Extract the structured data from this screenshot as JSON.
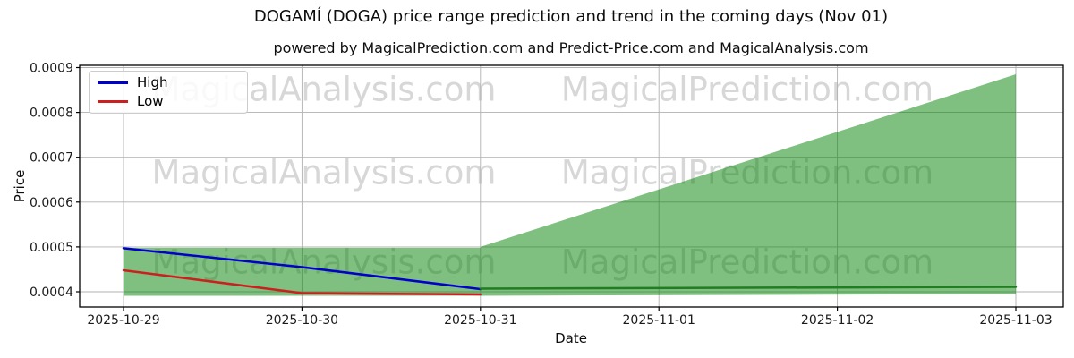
{
  "title": "DOGAMÍ (DOGA) price range prediction and trend in the coming days (Nov 01)",
  "subtitle": "powered by MagicalPrediction.com and Predict-Price.com and MagicalAnalysis.com",
  "watermark": {
    "left_text": "MagicalAnalysis.com",
    "right_text": "MagicalPrediction.com"
  },
  "legend": [
    {
      "label": "High",
      "color": "#0000cc"
    },
    {
      "label": "Low",
      "color": "#cc2020"
    }
  ],
  "colors": {
    "high_line": "#0000cc",
    "low_line": "#cc2020",
    "trend_line": "#217d21",
    "range_fill": "#008000",
    "range_fill_alpha": 0.5,
    "gridline": "#b0b0b0",
    "spine": "#000000",
    "tick_text": "#1a1a1a",
    "watermark": "#d7d7d7"
  },
  "chart_data": {
    "type": "line",
    "title": "DOGAMÍ (DOGA) price range prediction and trend in the coming days (Nov 01)",
    "xlabel": "Date",
    "ylabel": "Price",
    "categories": [
      "2025-10-29",
      "2025-10-30",
      "2025-10-31",
      "2025-11-01",
      "2025-11-02",
      "2025-11-03"
    ],
    "ytick_labels": [
      "0.0004",
      "0.0005",
      "0.0006",
      "0.0007",
      "0.0008",
      "0.0009"
    ],
    "ytick_values": [
      0.0004,
      0.0005,
      0.0006,
      0.0007,
      0.0008,
      0.0009
    ],
    "ylim": [
      0.000366,
      0.000905
    ],
    "grid": true,
    "legend_position": "upper left",
    "series": [
      {
        "name": "High",
        "color": "#0000cc",
        "x": [
          0,
          1,
          2
        ],
        "values": [
          0.000497,
          0.000455,
          0.000406
        ]
      },
      {
        "name": "Low",
        "color": "#cc2020",
        "x": [
          0,
          1,
          2
        ],
        "values": [
          0.000448,
          0.000397,
          0.000394
        ]
      },
      {
        "name": "Trend",
        "color": "#217d21",
        "x": [
          2,
          5
        ],
        "values": [
          0.000407,
          0.000411
        ]
      }
    ],
    "areas": [
      {
        "name": "historical-range-band",
        "x": [
          0,
          2
        ],
        "top": [
          0.000498,
          0.000498
        ],
        "bottom": [
          0.000391,
          0.000391
        ]
      },
      {
        "name": "forecast-range-fan",
        "x": [
          2,
          5
        ],
        "top": [
          0.0005,
          0.000885
        ],
        "bottom": [
          0.000391,
          0.000395
        ]
      }
    ]
  }
}
